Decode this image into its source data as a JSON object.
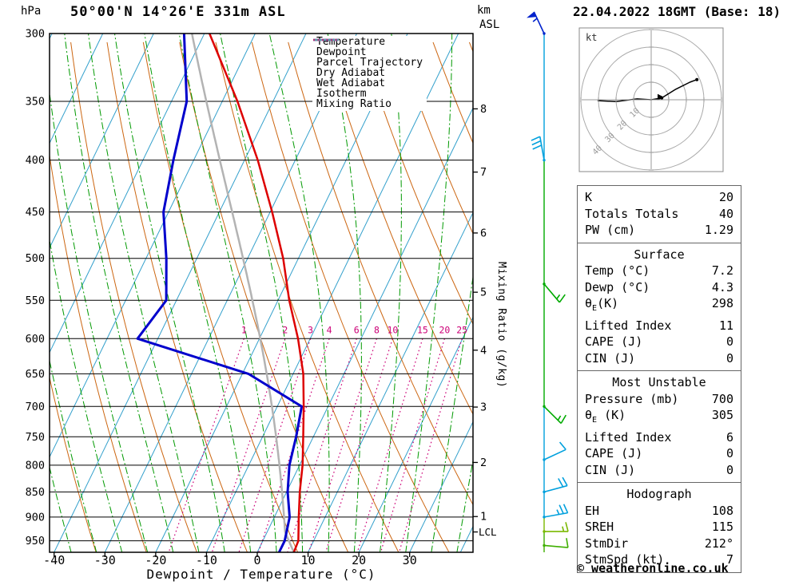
{
  "title": "50°00'N 14°26'E 331m ASL",
  "datetime": "22.04.2022 18GMT (Base: 18)",
  "copyright": "© weatheronline.co.uk",
  "axes": {
    "pressure_unit": "hPa",
    "km_label": "km",
    "asl_label": "ASL",
    "lcl_label": "LCL",
    "xlabel": "Dewpoint / Temperature (°C)",
    "mixing_ratio_label": "Mixing Ratio (g/kg)",
    "pressure_ticks": [
      300,
      350,
      400,
      450,
      500,
      550,
      600,
      650,
      700,
      750,
      800,
      850,
      900,
      950
    ],
    "temp_ticks": [
      -40,
      -30,
      -20,
      -10,
      0,
      10,
      20,
      30
    ],
    "km_ticks": [
      [
        8,
        356
      ],
      [
        7,
        411
      ],
      [
        6,
        472
      ],
      [
        5,
        540
      ],
      [
        4,
        616
      ],
      [
        3,
        701
      ],
      [
        2,
        795
      ],
      [
        1,
        899
      ]
    ]
  },
  "legend": [
    {
      "label": "Temperature",
      "color": "#dd0000",
      "dash": "",
      "lw": 2.5
    },
    {
      "label": "Dewpoint",
      "color": "#0000cc",
      "dash": "",
      "lw": 2.5
    },
    {
      "label": "Parcel Trajectory",
      "color": "#b3b3b3",
      "dash": "",
      "lw": 2.5
    },
    {
      "label": "Dry Adiabat",
      "color": "#cc6611",
      "dash": "",
      "lw": 1.2
    },
    {
      "label": "Wet Adiabat",
      "color": "#009900",
      "dash": "9 3 2 3",
      "lw": 1.2
    },
    {
      "label": "Isotherm",
      "color": "#33a0cc",
      "dash": "",
      "lw": 1.2
    },
    {
      "label": "Mixing Ratio",
      "color": "#cc0077",
      "dash": "2 3.5",
      "lw": 1.6
    }
  ],
  "hodograph": {
    "unit_label": "kt",
    "rings_kt": [
      10,
      20,
      30,
      40
    ],
    "trace_uv_kt": [
      [
        -30.5,
        -0.5
      ],
      [
        -20,
        -1
      ],
      [
        -8,
        0.5
      ],
      [
        0,
        0
      ],
      [
        6,
        1
      ],
      [
        14,
        6
      ],
      [
        22,
        10
      ],
      [
        26,
        11.5
      ]
    ],
    "trace_dots_uv_kt": [
      [
        6,
        1
      ],
      [
        26,
        11.5
      ]
    ],
    "storm_motion_uv_kt": [
      5,
      1.5
    ]
  },
  "tables": [
    {
      "title": "",
      "rows": [
        [
          "K",
          "20"
        ],
        [
          "Totals Totals",
          "40"
        ],
        [
          "PW (cm)",
          "1.29"
        ]
      ]
    },
    {
      "title": "Surface",
      "rows": [
        [
          "Temp (°C)",
          "7.2"
        ],
        [
          "Dewp (°C)",
          "4.3"
        ],
        [
          "θE(K)",
          "298"
        ],
        [
          "Lifted Index",
          "11"
        ],
        [
          "CAPE (J)",
          "0"
        ],
        [
          "CIN (J)",
          "0"
        ]
      ]
    },
    {
      "title": "Most Unstable",
      "rows": [
        [
          "Pressure (mb)",
          "700"
        ],
        [
          "θE (K)",
          "305"
        ],
        [
          "Lifted Index",
          "6"
        ],
        [
          "CAPE (J)",
          "0"
        ],
        [
          "CIN (J)",
          "0"
        ]
      ]
    },
    {
      "title": "Hodograph",
      "rows": [
        [
          "EH",
          "108"
        ],
        [
          "SREH",
          "115"
        ],
        [
          "StmDir",
          "212°"
        ],
        [
          "StmSpd (kt)",
          "7"
        ]
      ]
    }
  ],
  "chart_data": {
    "type": "skewt_log_p",
    "pressure_range_hpa": [
      300,
      975
    ],
    "temp_range_c": [
      -41,
      43
    ],
    "skew": 0.485,
    "isotherm_step_c": 10,
    "dry_adiabat_theta_c": [
      -30,
      110,
      10
    ],
    "wet_adiabat_start_c": [
      -40,
      40,
      5
    ],
    "mixing_ratio_g_kg": [
      1,
      2,
      3,
      4,
      6,
      8,
      10,
      15,
      20,
      25
    ],
    "temperature_profile": {
      "pressure_hpa": [
        975,
        950,
        900,
        850,
        800,
        750,
        700,
        650,
        600,
        550,
        500,
        450,
        400,
        350,
        300
      ],
      "temp_c": [
        7.2,
        7.0,
        4.8,
        2.6,
        0.6,
        -2.0,
        -4.8,
        -8.0,
        -12.4,
        -17.8,
        -23.0,
        -29.6,
        -37.4,
        -47.0,
        -59.0
      ]
    },
    "dewpoint_profile": {
      "pressure_hpa": [
        975,
        950,
        900,
        850,
        800,
        750,
        700,
        650,
        600,
        550,
        500,
        450,
        400,
        350,
        300
      ],
      "temp_c": [
        4.3,
        4.3,
        3.0,
        0.2,
        -2.0,
        -3.4,
        -5.2,
        -18.8,
        -44.0,
        -42.0,
        -46.0,
        -51.0,
        -54.0,
        -57.0,
        -64.0
      ]
    },
    "parcel": {
      "surface_pressure_hpa": 975,
      "surface_temp_c": 7.2,
      "surface_dewpoint_c": 4.3
    },
    "winds": [
      {
        "pressure_hpa": 300,
        "speed_kt": 55,
        "barb_angle_deg": 115,
        "color": "#0022cc"
      },
      {
        "pressure_hpa": 400,
        "speed_kt": 30,
        "barb_angle_deg": 100,
        "color": "#00a0dd"
      },
      {
        "pressure_hpa": 530,
        "speed_kt": 15,
        "barb_angle_deg": -50,
        "color": "#00aa00"
      },
      {
        "pressure_hpa": 700,
        "speed_kt": 15,
        "barb_angle_deg": -45,
        "color": "#00aa00"
      },
      {
        "pressure_hpa": 790,
        "speed_kt": 10,
        "barb_angle_deg": 25,
        "color": "#00a0dd"
      },
      {
        "pressure_hpa": 850,
        "speed_kt": 20,
        "barb_angle_deg": 15,
        "color": "#00a0dd"
      },
      {
        "pressure_hpa": 900,
        "speed_kt": 25,
        "barb_angle_deg": 10,
        "color": "#00a0dd"
      },
      {
        "pressure_hpa": 930,
        "speed_kt": 15,
        "barb_angle_deg": 0,
        "color": "#7ab800"
      },
      {
        "pressure_hpa": 960,
        "speed_kt": 10,
        "barb_angle_deg": -5,
        "color": "#3faf00"
      }
    ],
    "colors": {
      "temperature": "#dd0000",
      "dewpoint": "#0000cc",
      "parcel": "#b3b3b3",
      "dry_adiabat": "#cc6611",
      "wet_adiabat": "#009900",
      "isotherm": "#33a0cc",
      "mixing_ratio": "#cc0077",
      "grid": "#000000"
    }
  }
}
